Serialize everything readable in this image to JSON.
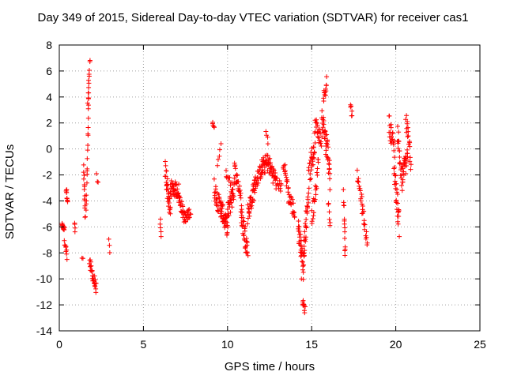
{
  "chart_data": {
    "type": "scatter",
    "title": "Day 349 of 2015, Sidereal Day-to-day VTEC variation (SDTVAR) for receiver cas1",
    "xlabel": "GPS time / hours",
    "ylabel": "SDTVAR / TECUs",
    "xlim": [
      0,
      25
    ],
    "ylim": [
      -14,
      8
    ],
    "xticks": [
      "0",
      "5",
      "10",
      "15",
      "20",
      "25"
    ],
    "yticks": [
      "-14",
      "-12",
      "-10",
      "-8",
      "-6",
      "-4",
      "-2",
      "0",
      "2",
      "4",
      "6",
      "8"
    ],
    "grid": true,
    "marker": "+",
    "marker_color": "#ff0000",
    "segments": [
      {
        "x0": 0.15,
        "x1": 0.3,
        "y0": -5.9,
        "y1": -6.2,
        "jitter": 0.2,
        "n": 14
      },
      {
        "x0": 0.3,
        "x1": 0.45,
        "y0": -7.0,
        "y1": -8.2,
        "jitter": 0.4,
        "n": 10
      },
      {
        "x0": 0.4,
        "x1": 0.5,
        "y0": -3.0,
        "y1": -3.9,
        "jitter": 0.3,
        "n": 10
      },
      {
        "x0": 0.9,
        "x1": 0.95,
        "y0": -5.7,
        "y1": -6.4,
        "jitter": 0.2,
        "n": 4
      },
      {
        "x0": 1.35,
        "x1": 1.4,
        "y0": -8.4,
        "y1": -8.4,
        "jitter": 0.05,
        "n": 2
      },
      {
        "x0": 1.45,
        "x1": 1.55,
        "y0": -1.5,
        "y1": -5.4,
        "jitter": 0.3,
        "n": 14
      },
      {
        "x0": 1.6,
        "x1": 1.75,
        "y0": -5.0,
        "y1": 4.0,
        "jitter": 0.4,
        "n": 18
      },
      {
        "x0": 1.7,
        "x1": 1.82,
        "y0": 3.5,
        "y1": 6.9,
        "jitter": 0.3,
        "n": 12
      },
      {
        "x0": 1.8,
        "x1": 2.2,
        "y0": -8.8,
        "y1": -10.8,
        "jitter": 0.5,
        "n": 28
      },
      {
        "x0": 2.2,
        "x1": 2.3,
        "y0": -2.2,
        "y1": -2.8,
        "jitter": 0.3,
        "n": 3
      },
      {
        "x0": 2.95,
        "x1": 3.0,
        "y0": -7.0,
        "y1": -7.9,
        "jitter": 0.1,
        "n": 3
      },
      {
        "x0": 6.0,
        "x1": 6.05,
        "y0": -5.5,
        "y1": -6.9,
        "jitter": 0.2,
        "n": 5
      },
      {
        "x0": 6.3,
        "x1": 6.6,
        "y0": -1.5,
        "y1": -5.0,
        "jitter": 0.8,
        "n": 30
      },
      {
        "x0": 6.6,
        "x1": 7.1,
        "y0": -3.0,
        "y1": -3.2,
        "jitter": 0.6,
        "n": 34
      },
      {
        "x0": 7.1,
        "x1": 7.5,
        "y0": -3.6,
        "y1": -5.6,
        "jitter": 0.5,
        "n": 28
      },
      {
        "x0": 7.5,
        "x1": 7.8,
        "y0": -5.3,
        "y1": -4.8,
        "jitter": 0.4,
        "n": 14
      },
      {
        "x0": 9.1,
        "x1": 9.2,
        "y0": 2.1,
        "y1": 1.6,
        "jitter": 0.2,
        "n": 5
      },
      {
        "x0": 9.2,
        "x1": 9.6,
        "y0": -3.0,
        "y1": -4.8,
        "jitter": 0.8,
        "n": 28
      },
      {
        "x0": 9.4,
        "x1": 9.6,
        "y0": -1.0,
        "y1": 0.2,
        "jitter": 0.3,
        "n": 5
      },
      {
        "x0": 9.6,
        "x1": 10.0,
        "y0": -4.5,
        "y1": -6.2,
        "jitter": 0.7,
        "n": 36
      },
      {
        "x0": 10.0,
        "x1": 10.4,
        "y0": -5.0,
        "y1": -3.0,
        "jitter": 0.8,
        "n": 30
      },
      {
        "x0": 9.9,
        "x1": 10.3,
        "y0": -1.5,
        "y1": -3.0,
        "jitter": 0.6,
        "n": 12
      },
      {
        "x0": 10.4,
        "x1": 10.8,
        "y0": -1.5,
        "y1": -3.5,
        "jitter": 0.6,
        "n": 20
      },
      {
        "x0": 10.8,
        "x1": 11.2,
        "y0": -5.0,
        "y1": -7.8,
        "jitter": 0.9,
        "n": 36
      },
      {
        "x0": 11.2,
        "x1": 11.6,
        "y0": -5.0,
        "y1": -3.0,
        "jitter": 0.8,
        "n": 30
      },
      {
        "x0": 11.6,
        "x1": 12.0,
        "y0": -2.8,
        "y1": -1.6,
        "jitter": 0.6,
        "n": 26
      },
      {
        "x0": 12.0,
        "x1": 12.4,
        "y0": -1.5,
        "y1": -1.0,
        "jitter": 0.7,
        "n": 30
      },
      {
        "x0": 12.3,
        "x1": 12.4,
        "y0": 1.3,
        "y1": 0.5,
        "jitter": 0.2,
        "n": 4
      },
      {
        "x0": 12.4,
        "x1": 12.9,
        "y0": -1.0,
        "y1": -2.5,
        "jitter": 0.7,
        "n": 30
      },
      {
        "x0": 12.9,
        "x1": 13.2,
        "y0": -2.5,
        "y1": -3.0,
        "jitter": 0.4,
        "n": 12
      },
      {
        "x0": 13.3,
        "x1": 13.6,
        "y0": -1.0,
        "y1": -3.0,
        "jitter": 0.5,
        "n": 16
      },
      {
        "x0": 13.6,
        "x1": 14.0,
        "y0": -3.5,
        "y1": -5.0,
        "jitter": 0.7,
        "n": 20
      },
      {
        "x0": 14.2,
        "x1": 14.5,
        "y0": -6.0,
        "y1": -8.8,
        "jitter": 0.8,
        "n": 30
      },
      {
        "x0": 14.4,
        "x1": 14.5,
        "y0": -10.0,
        "y1": -10.0,
        "jitter": 0.05,
        "n": 2
      },
      {
        "x0": 14.45,
        "x1": 14.6,
        "y0": -11.8,
        "y1": -12.4,
        "jitter": 0.3,
        "n": 10
      },
      {
        "x0": 14.5,
        "x1": 14.8,
        "y0": -8.5,
        "y1": -3.5,
        "jitter": 0.9,
        "n": 30
      },
      {
        "x0": 14.8,
        "x1": 15.2,
        "y0": -2.5,
        "y1": 0.5,
        "jitter": 1.0,
        "n": 30
      },
      {
        "x0": 15.0,
        "x1": 15.4,
        "y0": -5.5,
        "y1": -1.0,
        "jitter": 0.8,
        "n": 22
      },
      {
        "x0": 15.2,
        "x1": 15.6,
        "y0": 2.0,
        "y1": 0.5,
        "jitter": 0.7,
        "n": 24
      },
      {
        "x0": 15.6,
        "x1": 15.9,
        "y0": 2.5,
        "y1": 0.0,
        "jitter": 0.8,
        "n": 22
      },
      {
        "x0": 15.7,
        "x1": 15.9,
        "y0": 3.8,
        "y1": 5.3,
        "jitter": 0.5,
        "n": 12
      },
      {
        "x0": 15.9,
        "x1": 16.1,
        "y0": 1.0,
        "y1": -2.5,
        "jitter": 0.8,
        "n": 18
      },
      {
        "x0": 16.0,
        "x1": 16.1,
        "y0": -4.0,
        "y1": -6.0,
        "jitter": 0.3,
        "n": 6
      },
      {
        "x0": 16.9,
        "x1": 17.0,
        "y0": -3.5,
        "y1": -8.2,
        "jitter": 0.5,
        "n": 14
      },
      {
        "x0": 17.3,
        "x1": 17.4,
        "y0": 3.5,
        "y1": 2.4,
        "jitter": 0.3,
        "n": 6
      },
      {
        "x0": 17.7,
        "x1": 18.0,
        "y0": -2.0,
        "y1": -4.2,
        "jitter": 0.4,
        "n": 14
      },
      {
        "x0": 18.0,
        "x1": 18.3,
        "y0": -4.5,
        "y1": -7.2,
        "jitter": 0.5,
        "n": 16
      },
      {
        "x0": 19.6,
        "x1": 19.9,
        "y0": 2.0,
        "y1": 0.0,
        "jitter": 0.8,
        "n": 22
      },
      {
        "x0": 19.9,
        "x1": 20.2,
        "y0": -1.5,
        "y1": -5.8,
        "jitter": 1.0,
        "n": 28
      },
      {
        "x0": 20.1,
        "x1": 20.4,
        "y0": 1.5,
        "y1": -3.0,
        "jitter": 1.0,
        "n": 24
      },
      {
        "x0": 20.4,
        "x1": 20.7,
        "y0": -2.0,
        "y1": -0.5,
        "jitter": 0.9,
        "n": 24
      },
      {
        "x0": 20.6,
        "x1": 20.9,
        "y0": 2.3,
        "y1": -1.0,
        "jitter": 0.8,
        "n": 18
      }
    ]
  }
}
